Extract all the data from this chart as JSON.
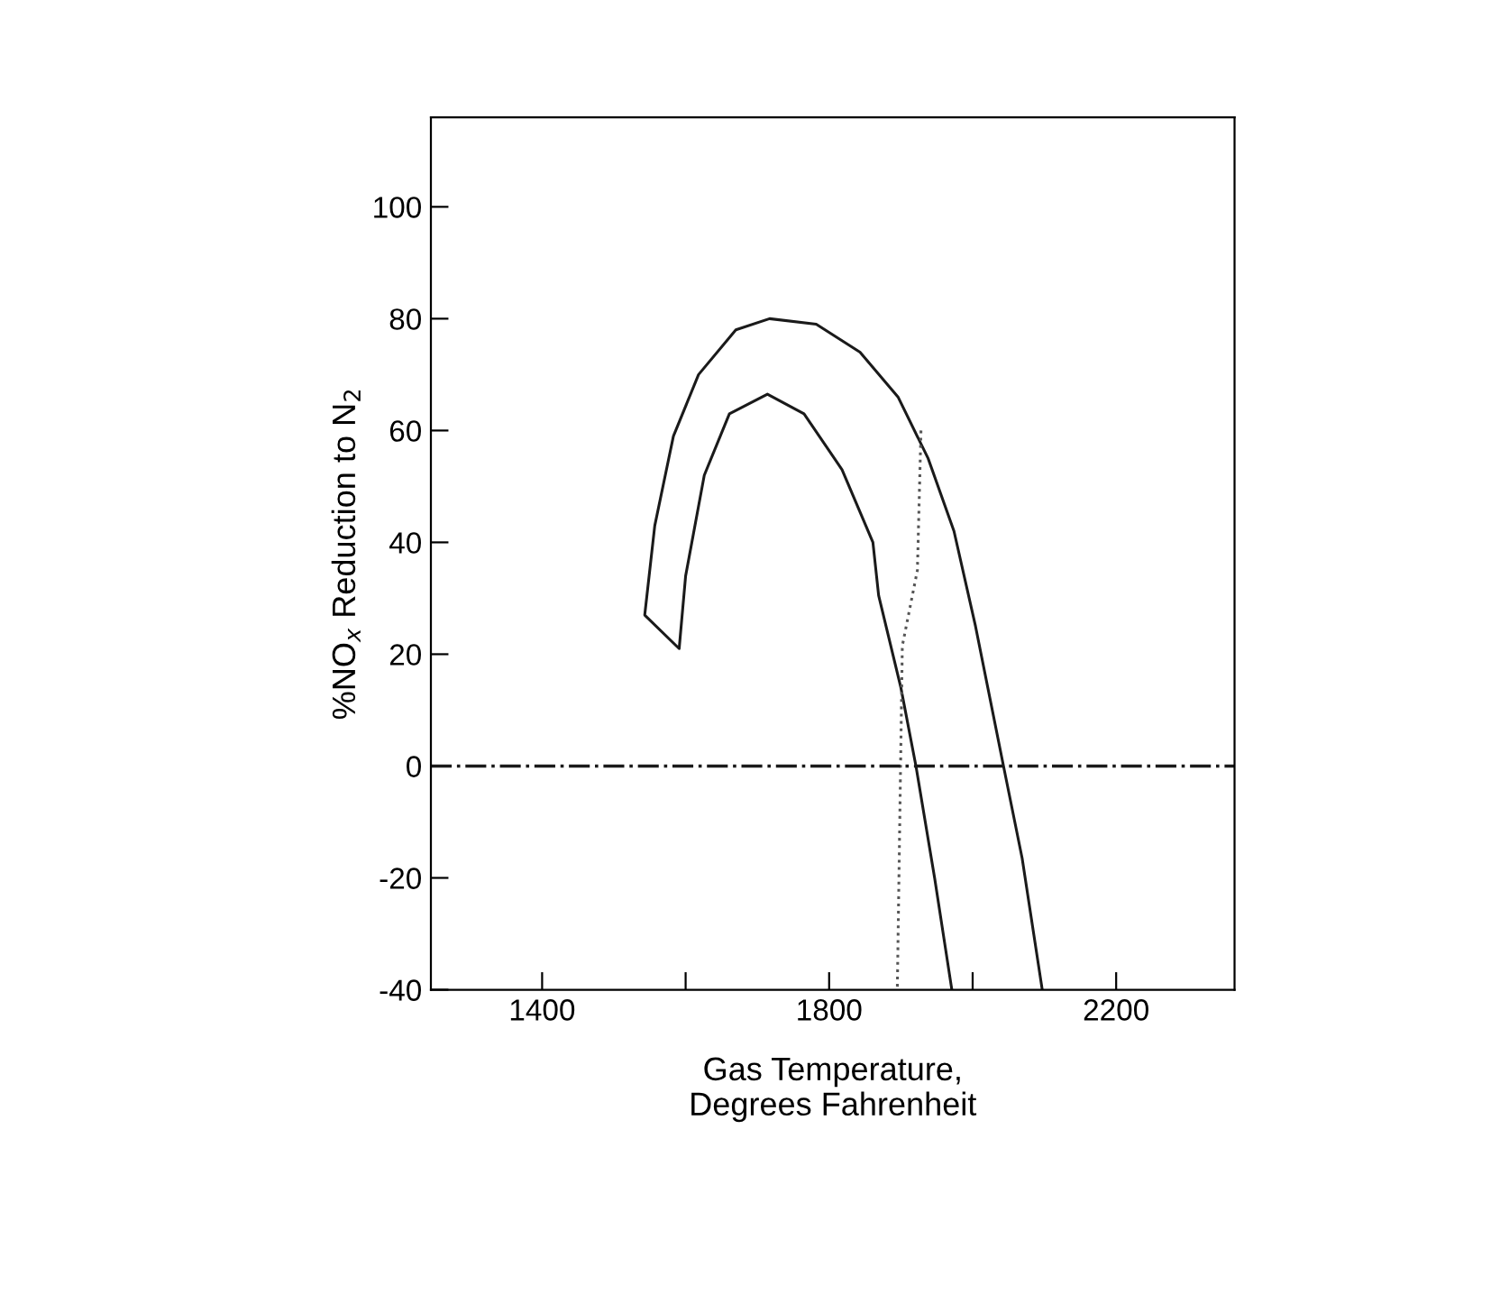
{
  "chart_data": {
    "type": "line",
    "xlabel": "Gas Temperature,\nDegrees Fahrenheit",
    "ylabel": "%NO$_{x}$ Reduction to N$_{2}$",
    "xlim": [
      1245,
      2365
    ],
    "xticks": [
      1400,
      {
        "value": 1600,
        "label": null
      },
      1800,
      {
        "value": 2000,
        "label": null
      },
      2200
    ],
    "ylim": [
      -40,
      116
    ],
    "yticks": [
      -40,
      -20,
      0,
      20,
      40,
      60,
      80,
      100
    ],
    "grid": false,
    "legend": false,
    "marker": "none",
    "series": [
      {
        "color": "#1a1a1a",
        "line_style": "solid",
        "x": [
          1971,
          1947,
          1921,
          1900,
          1869,
          1861,
          1818,
          1765,
          1714,
          1661,
          1626,
          1600,
          1591,
          1543,
          1557,
          1583,
          1618,
          1670,
          1717,
          1782,
          1843,
          1896,
          1938,
          1974,
          2004,
          2043,
          2069,
          2097
        ],
        "values": [
          -40,
          -20,
          0,
          14,
          30.5,
          40,
          53,
          63,
          66.5,
          63,
          52,
          34,
          21,
          27,
          43,
          59,
          70,
          78,
          80,
          79,
          74,
          66,
          55,
          42,
          25,
          0,
          -16.5,
          -40
        ]
      },
      {
        "color": "#555555",
        "line_style": "dotted",
        "x": [
          1928,
          1923,
          1902,
          1895
        ],
        "values": [
          60,
          35,
          21.5,
          -40
        ]
      }
    ],
    "ref_lines": [
      {
        "axis": "y",
        "value": 0,
        "line_style": "dashdot",
        "color": "#1a1a1a"
      }
    ]
  }
}
